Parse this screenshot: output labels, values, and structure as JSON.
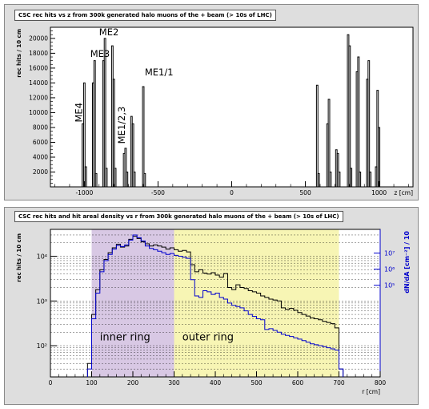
{
  "chart_data": [
    {
      "type": "bar",
      "title": "CSC rec hits vs z from 300k generated halo muons of the + beam (> 10s of LHC)",
      "xlabel": "z [cm]",
      "ylabel": "rec hits / 10 cm",
      "xlim": [
        -1230,
        1230
      ],
      "ylim": [
        0,
        21500
      ],
      "xticks": [
        -1000,
        -500,
        0,
        500,
        1000
      ],
      "xtick_labels": [
        "-1000",
        "-500",
        "0",
        "500",
        "1000"
      ],
      "yticks": [
        2000,
        4000,
        6000,
        8000,
        10000,
        12000,
        14000,
        16000,
        18000,
        20000
      ],
      "ytick_labels": [
        "2000",
        "4000",
        "6000",
        "8000",
        "10000",
        "12000",
        "14000",
        "16000",
        "18000",
        "20000"
      ],
      "annotations": [
        "ME4",
        "ME3",
        "ME2",
        "ME1/1",
        "ME1/2,3"
      ],
      "bins": [
        {
          "x": -1010,
          "y": 8500
        },
        {
          "x": -1000,
          "y": 14000
        },
        {
          "x": -990,
          "y": 2700
        },
        {
          "x": -940,
          "y": 14000
        },
        {
          "x": -930,
          "y": 17000
        },
        {
          "x": -920,
          "y": 1800
        },
        {
          "x": -870,
          "y": 17000
        },
        {
          "x": -860,
          "y": 20000
        },
        {
          "x": -850,
          "y": 2500
        },
        {
          "x": -810,
          "y": 19000
        },
        {
          "x": -800,
          "y": 14500
        },
        {
          "x": -790,
          "y": 2500
        },
        {
          "x": -730,
          "y": 4500
        },
        {
          "x": -720,
          "y": 5200
        },
        {
          "x": -710,
          "y": 2000
        },
        {
          "x": -680,
          "y": 9500
        },
        {
          "x": -670,
          "y": 8500
        },
        {
          "x": -660,
          "y": 2000
        },
        {
          "x": -600,
          "y": 13500
        },
        {
          "x": -590,
          "y": 1800
        },
        {
          "x": 580,
          "y": 13700
        },
        {
          "x": 590,
          "y": 1800
        },
        {
          "x": 650,
          "y": 8500
        },
        {
          "x": 660,
          "y": 11800
        },
        {
          "x": 670,
          "y": 2000
        },
        {
          "x": 710,
          "y": 5000
        },
        {
          "x": 720,
          "y": 4500
        },
        {
          "x": 730,
          "y": 2000
        },
        {
          "x": 790,
          "y": 20500
        },
        {
          "x": 800,
          "y": 19000
        },
        {
          "x": 810,
          "y": 2500
        },
        {
          "x": 850,
          "y": 15500
        },
        {
          "x": 860,
          "y": 17500
        },
        {
          "x": 870,
          "y": 2000
        },
        {
          "x": 920,
          "y": 14500
        },
        {
          "x": 930,
          "y": 17000
        },
        {
          "x": 940,
          "y": 2000
        },
        {
          "x": 980,
          "y": 2700
        },
        {
          "x": 990,
          "y": 13000
        },
        {
          "x": 1000,
          "y": 8000
        }
      ]
    },
    {
      "type": "line",
      "title": "CSC rec hits and hit areal density vs r from 300k generated halo muons of the + beam (> 10s of LHC)",
      "xlabel": "r [cm]",
      "ylabel": "rec hits / 10 cm",
      "ylabel_right": "dN/dA [cm⁻²] / 10",
      "xlim": [
        0,
        800
      ],
      "ylim": [
        20,
        40000
      ],
      "ylim_right": [
        0.2,
        300000000
      ],
      "log_y": true,
      "xticks": [
        0,
        100,
        200,
        300,
        400,
        500,
        600,
        700,
        800
      ],
      "xtick_labels": [
        "0",
        "100",
        "200",
        "300",
        "400",
        "500",
        "600",
        "700",
        "800"
      ],
      "yticks": [
        100,
        1000,
        10000
      ],
      "ytick_labels": [
        "10²",
        "10³",
        "10⁴"
      ],
      "yticks_right": [
        100000,
        1000000,
        10000000
      ],
      "ytick_right_labels": [
        "10⁵",
        "10⁶",
        "10⁷"
      ],
      "regions": [
        {
          "label": "inner ring",
          "from": 100,
          "to": 300,
          "color": "#d8c8e4"
        },
        {
          "label": "outer ring",
          "from": 300,
          "to": 700,
          "color": "#f7f5b4"
        }
      ],
      "colors": {
        "hits": "#000000",
        "density": "#0000cc"
      },
      "series": [
        {
          "x": [
            90,
            100,
            110,
            120,
            130,
            140,
            150,
            160,
            170,
            180,
            190,
            200,
            210,
            220,
            230,
            240,
            250,
            260,
            270,
            280,
            290,
            300,
            310,
            320,
            330,
            340,
            350,
            360,
            370,
            380,
            390,
            400,
            410,
            420,
            430,
            440,
            450,
            460,
            470,
            480,
            490,
            500,
            510,
            520,
            530,
            540,
            550,
            560,
            570,
            580,
            590,
            600,
            610,
            620,
            630,
            640,
            650,
            660,
            670,
            680,
            690,
            700
          ],
          "y": [
            40,
            500,
            1800,
            5000,
            8500,
            12000,
            15500,
            18500,
            16000,
            17000,
            24000,
            28000,
            25000,
            21000,
            19000,
            17000,
            18000,
            17000,
            16000,
            14500,
            15500,
            14000,
            13000,
            13500,
            12500,
            6500,
            4500,
            5000,
            4200,
            4000,
            4300,
            3800,
            3400,
            4100,
            2000,
            1800,
            2300,
            2000,
            1900,
            1700,
            1600,
            1500,
            1300,
            1200,
            1100,
            1050,
            1000,
            700,
            650,
            680,
            620,
            550,
            500,
            460,
            420,
            400,
            380,
            350,
            330,
            310,
            250,
            30
          ]
        },
        {
          "x": [
            90,
            100,
            110,
            120,
            130,
            140,
            150,
            160,
            170,
            180,
            190,
            200,
            210,
            220,
            230,
            240,
            250,
            260,
            270,
            280,
            290,
            300,
            310,
            320,
            330,
            340,
            350,
            360,
            370,
            380,
            390,
            400,
            410,
            420,
            430,
            440,
            450,
            460,
            470,
            480,
            490,
            500,
            510,
            520,
            530,
            540,
            550,
            560,
            570,
            580,
            590,
            600,
            610,
            620,
            630,
            640,
            650,
            660,
            670,
            680,
            690,
            700
          ],
          "y": [
            30,
            400,
            1500,
            4500,
            8000,
            11000,
            14500,
            17500,
            16500,
            18000,
            23000,
            30000,
            26000,
            22000,
            17000,
            15000,
            14000,
            13000,
            12000,
            11000,
            11500,
            10500,
            10000,
            9500,
            9000,
            3000,
            1300,
            1200,
            1700,
            1600,
            1400,
            1500,
            1200,
            1100,
            900,
            800,
            750,
            700,
            600,
            500,
            450,
            400,
            380,
            230,
            240,
            220,
            200,
            180,
            170,
            160,
            150,
            140,
            130,
            120,
            110,
            105,
            100,
            95,
            90,
            85,
            80,
            30
          ]
        }
      ]
    }
  ]
}
